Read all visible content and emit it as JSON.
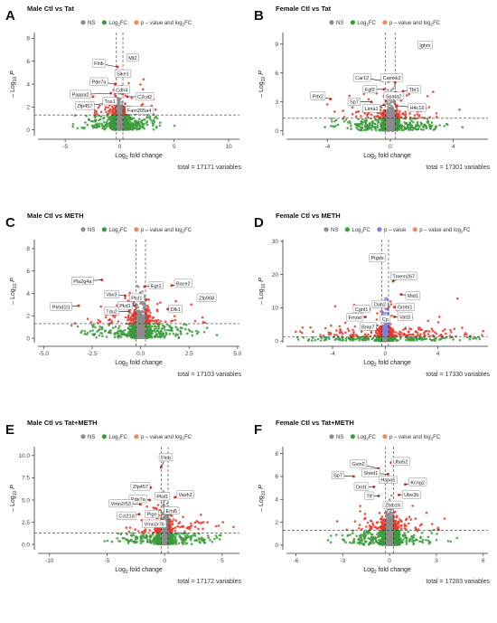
{
  "colors": {
    "ns": "#8c8c8c",
    "log2fc": "#3a9b3a",
    "pvalue": "#7f7fe0",
    "both": "#e8382a",
    "legend_both": "#f08a6a",
    "grid_line": "#333333",
    "label_box": "#ffffff"
  },
  "legend_text": {
    "ns": "NS",
    "log2fc_prefix": "Log",
    "log2fc_sub": "2",
    "log2fc_suffix": " FC",
    "pvalue": "p – value",
    "both": "p – value and log",
    "both_sub": "2",
    "both_suffix": " FC"
  },
  "axis_text": {
    "xlabel_prefix": "Log",
    "xlabel_sub": "2",
    "xlabel_suffix": " fold change",
    "ylabel_prefix": "– Log",
    "ylabel_sub": "10",
    "ylabel_suffix": " P"
  },
  "chart_data": [
    {
      "letter": "A",
      "title": "Male Ctl vs Tat",
      "type": "scatter",
      "legend": [
        "NS",
        "Log2 FC",
        "p – value and log2 FC"
      ],
      "xlim": [
        -7.5,
        11
      ],
      "ylim": [
        -0.5,
        8.5
      ],
      "xticks": [
        -5,
        0,
        5,
        10
      ],
      "yticks": [
        0,
        2,
        4,
        6,
        8
      ],
      "pthreshold": 1.3,
      "fcthreshold": 0.3,
      "total_caption": "total = 17171 variables",
      "spread": {
        "x": 1.4,
        "y": 1.3,
        "tail": 3.5
      },
      "labels": [
        {
          "name": "Mt2",
          "x": 1.2,
          "y": 6.1,
          "lx": 1.2,
          "ly": 6.3
        },
        {
          "name": "Flnb",
          "x": -0.2,
          "y": 5.5,
          "lx": -1.9,
          "ly": 5.8
        },
        {
          "name": "Sike1",
          "x": 0.3,
          "y": 4.7,
          "lx": 0.3,
          "ly": 4.9
        },
        {
          "name": "Pde7a",
          "x": -0.4,
          "y": 4.0,
          "lx": -1.9,
          "ly": 4.2
        },
        {
          "name": "Cdh4",
          "x": 0.2,
          "y": 3.8,
          "lx": 0.2,
          "ly": 3.5
        },
        {
          "name": "Pappa2",
          "x": -0.8,
          "y": 3.2,
          "lx": -3.6,
          "ly": 3.1
        },
        {
          "name": "C2cd2",
          "x": 0.7,
          "y": 2.9,
          "lx": 2.3,
          "ly": 2.9
        },
        {
          "name": "Zfp457",
          "x": -0.6,
          "y": 2.4,
          "lx": -3.2,
          "ly": 2.1
        },
        {
          "name": "Tns1",
          "x": -0.3,
          "y": 2.6,
          "lx": -0.9,
          "ly": 2.5
        },
        {
          "name": "Fam205a4",
          "x": 0.6,
          "y": 1.9,
          "lx": 1.8,
          "ly": 1.7
        }
      ]
    },
    {
      "letter": "B",
      "title": "Female Ctl vs Tat",
      "type": "scatter",
      "legend": [
        "NS",
        "Log2 FC",
        "p – value and log2 FC"
      ],
      "xlim": [
        -6.6,
        6.2
      ],
      "ylim": [
        -0.5,
        10.2
      ],
      "xticks": [
        -4,
        0,
        4
      ],
      "yticks": [
        0,
        3,
        6,
        9
      ],
      "pthreshold": 1.3,
      "fcthreshold": 0.3,
      "total_caption": "total = 17301 variables",
      "spread": {
        "x": 0.9,
        "y": 1.3,
        "tail": 3.0
      },
      "labels": [
        {
          "name": "Ighm",
          "x": 1.9,
          "y": 8.6,
          "lx": 2.2,
          "ly": 8.9
        },
        {
          "name": "Car12",
          "x": -0.5,
          "y": 5.2,
          "lx": -1.8,
          "ly": 5.5
        },
        {
          "name": "Camkk2",
          "x": 0.3,
          "y": 5.0,
          "lx": 0.1,
          "ly": 5.5
        },
        {
          "name": "Fgf2",
          "x": -0.4,
          "y": 4.3,
          "lx": -1.3,
          "ly": 4.3
        },
        {
          "name": "Tbr1",
          "x": 0.8,
          "y": 4.1,
          "lx": 1.5,
          "ly": 4.3
        },
        {
          "name": "Spata2",
          "x": 0.3,
          "y": 3.7,
          "lx": 0.2,
          "ly": 3.6
        },
        {
          "name": "Pitx2",
          "x": -3.8,
          "y": 3.3,
          "lx": -4.6,
          "ly": 3.6
        },
        {
          "name": "Sp7",
          "x": -1.2,
          "y": 3.0,
          "lx": -2.3,
          "ly": 3.0
        },
        {
          "name": "Lima1",
          "x": -0.4,
          "y": 2.7,
          "lx": -1.2,
          "ly": 2.3
        },
        {
          "name": "H4c16",
          "x": 0.4,
          "y": 2.6,
          "lx": 1.7,
          "ly": 2.4
        }
      ]
    },
    {
      "letter": "C",
      "title": "Male Ctl vs METH",
      "type": "scatter",
      "legend": [
        "NS",
        "Log2 FC",
        "p – value and log2 FC"
      ],
      "xlim": [
        -5.3,
        5.1
      ],
      "ylim": [
        -0.4,
        8.8
      ],
      "xticks": [
        -5.0,
        -2.5,
        0.0,
        2.5,
        5.0
      ],
      "yticks": [
        0,
        2,
        4,
        6,
        8
      ],
      "pthreshold": 1.3,
      "fcthreshold": 0.25,
      "total_caption": "total = 17103 variables",
      "spread": {
        "x": 0.9,
        "y": 1.4,
        "tail": 2.8
      },
      "labels": [
        {
          "name": "Pla2g4a",
          "x": -2.0,
          "y": 5.2,
          "lx": -3.0,
          "ly": 5.1
        },
        {
          "name": "Egr1",
          "x": 0.2,
          "y": 4.6,
          "lx": 0.8,
          "ly": 4.7
        },
        {
          "name": "Bace2",
          "x": 1.6,
          "y": 4.7,
          "lx": 2.2,
          "ly": 4.9
        },
        {
          "name": "Vav3",
          "x": -0.8,
          "y": 3.8,
          "lx": -1.5,
          "ly": 3.9
        },
        {
          "name": "Ptcl1",
          "x": -0.1,
          "y": 3.6,
          "lx": -0.2,
          "ly": 3.6
        },
        {
          "name": "Zfp968",
          "x": 3.0,
          "y": 3.5,
          "lx": 3.4,
          "ly": 3.6
        },
        {
          "name": "Pkd1",
          "x": -0.3,
          "y": 2.9,
          "lx": -0.8,
          "ly": 2.9
        },
        {
          "name": "Tdo2",
          "x": -0.6,
          "y": 2.4,
          "lx": -1.5,
          "ly": 2.4
        },
        {
          "name": "Dlk1",
          "x": 1.4,
          "y": 2.6,
          "lx": 1.8,
          "ly": 2.6
        },
        {
          "name": "Pkhd1l1",
          "x": -3.2,
          "y": 2.9,
          "lx": -4.1,
          "ly": 2.8
        }
      ]
    },
    {
      "letter": "D",
      "title": "Female Ctl vs METH",
      "type": "scatter",
      "legend": [
        "NS",
        "Log2 FC",
        "p–value",
        "p – value and log2 FC"
      ],
      "xlim": [
        -7.5,
        7.8
      ],
      "ylim": [
        -0.5,
        30.5
      ],
      "xticks": [
        -4,
        0,
        4
      ],
      "yticks": [
        0,
        10,
        20,
        30
      ],
      "pthreshold": 1.3,
      "fcthreshold": 0.25,
      "total_caption": "total = 17330 variables",
      "spread": {
        "x": 1.0,
        "y": 2.5,
        "tail": 7.0
      },
      "labels": [
        {
          "name": "Ptgds",
          "x": -1.0,
          "y": 24.2,
          "lx": -0.6,
          "ly": 25.0
        },
        {
          "name": "Tmem267",
          "x": 0.6,
          "y": 18.0,
          "lx": 1.4,
          "ly": 19.5
        },
        {
          "name": "Mid1",
          "x": 1.2,
          "y": 14.0,
          "lx": 2.1,
          "ly": 13.6
        },
        {
          "name": "Dab2",
          "x": -0.5,
          "y": 11.0,
          "lx": -0.4,
          "ly": 11.0
        },
        {
          "name": "Grebi1",
          "x": 0.7,
          "y": 10.2,
          "lx": 1.5,
          "ly": 10.2
        },
        {
          "name": "Cgnl1",
          "x": -1.2,
          "y": 9.5,
          "lx": -1.8,
          "ly": 9.6
        },
        {
          "name": "Vat1l",
          "x": 0.7,
          "y": 7.3,
          "lx": 1.5,
          "ly": 7.3
        },
        {
          "name": "Fmod",
          "x": -1.5,
          "y": 7.2,
          "lx": -2.3,
          "ly": 7.1
        },
        {
          "name": "Cp",
          "x": -0.1,
          "y": 6.6,
          "lx": 0.0,
          "ly": 6.6
        },
        {
          "name": "Bmp7",
          "x": -1.0,
          "y": 4.6,
          "lx": -1.3,
          "ly": 4.3
        }
      ]
    },
    {
      "letter": "E",
      "title": "Male Ctl vs Tat+METH",
      "type": "scatter",
      "legend": [
        "NS",
        "Log2 FC",
        "p – value and log2 FC"
      ],
      "xlim": [
        -11,
        6.5
      ],
      "ylim": [
        -0.6,
        11.0
      ],
      "xticks": [
        -10,
        -5,
        0,
        5
      ],
      "yticks": [
        0.0,
        2.5,
        5.0,
        7.5,
        10.0
      ],
      "pthreshold": 1.3,
      "fcthreshold": 0.3,
      "total_caption": "total = 17172 variables",
      "spread": {
        "x": 1.2,
        "y": 1.6,
        "tail": 4.0
      },
      "labels": [
        {
          "name": "Flnb",
          "x": -0.3,
          "y": 8.7,
          "lx": 0.1,
          "ly": 9.8
        },
        {
          "name": "Zfp457",
          "x": -1.2,
          "y": 6.4,
          "lx": -2.1,
          "ly": 6.5
        },
        {
          "name": "Vash2",
          "x": 0.9,
          "y": 5.3,
          "lx": 1.8,
          "ly": 5.6
        },
        {
          "name": "Pkd1",
          "x": -0.1,
          "y": 5.2,
          "lx": -0.2,
          "ly": 5.4
        },
        {
          "name": "Pde7a",
          "x": -1.3,
          "y": 5.0,
          "lx": -2.3,
          "ly": 5.1
        },
        {
          "name": "Vmn2r53",
          "x": -2.1,
          "y": 4.5,
          "lx": -3.8,
          "ly": 4.6
        },
        {
          "name": "Emi5",
          "x": 0.2,
          "y": 3.8,
          "lx": 0.6,
          "ly": 3.8
        },
        {
          "name": "Ccl21d",
          "x": -2.2,
          "y": 3.4,
          "lx": -3.3,
          "ly": 3.2
        },
        {
          "name": "Pign",
          "x": -0.9,
          "y": 3.4,
          "lx": -1.1,
          "ly": 3.4
        },
        {
          "name": "Vmn2r76",
          "x": -0.6,
          "y": 2.4,
          "lx": -0.9,
          "ly": 2.3
        }
      ]
    },
    {
      "letter": "F",
      "title": "Female Ctl vs Tat+METH",
      "type": "scatter",
      "legend": [
        "NS",
        "Log2 FC",
        "p – value and log2 FC"
      ],
      "xlim": [
        -6.6,
        6.3
      ],
      "ylim": [
        -0.4,
        8.6
      ],
      "xticks": [
        -6,
        -3,
        0,
        3,
        6
      ],
      "yticks": [
        0,
        2,
        4,
        6,
        8
      ],
      "pthreshold": 1.3,
      "fcthreshold": 0.25,
      "total_caption": "total = 17283 variables",
      "spread": {
        "x": 1.0,
        "y": 1.4,
        "tail": 3.0
      },
      "labels": [
        {
          "name": "Uba52",
          "x": 0.1,
          "y": 7.2,
          "lx": 0.7,
          "ly": 7.3
        },
        {
          "name": "Gvin2",
          "x": -0.7,
          "y": 6.7,
          "lx": -2.0,
          "ly": 7.1
        },
        {
          "name": "Shed1",
          "x": -0.1,
          "y": 6.2,
          "lx": -1.2,
          "ly": 6.3
        },
        {
          "name": "Sp7",
          "x": -2.3,
          "y": 6.0,
          "lx": -3.3,
          "ly": 6.1
        },
        {
          "name": "Hspa5",
          "x": -0.2,
          "y": 5.5,
          "lx": -0.1,
          "ly": 5.7
        },
        {
          "name": "Kcng2",
          "x": 1.0,
          "y": 5.3,
          "lx": 1.8,
          "ly": 5.5
        },
        {
          "name": "Drd1",
          "x": -1.0,
          "y": 5.1,
          "lx": -1.8,
          "ly": 5.1
        },
        {
          "name": "Ube3b",
          "x": 0.6,
          "y": 4.4,
          "lx": 1.4,
          "ly": 4.4
        },
        {
          "name": "Ttf",
          "x": -0.7,
          "y": 4.3,
          "lx": -1.3,
          "ly": 4.3
        },
        {
          "name": "Zbtb16",
          "x": 0.1,
          "y": 3.4,
          "lx": 0.2,
          "ly": 3.5
        }
      ]
    }
  ]
}
